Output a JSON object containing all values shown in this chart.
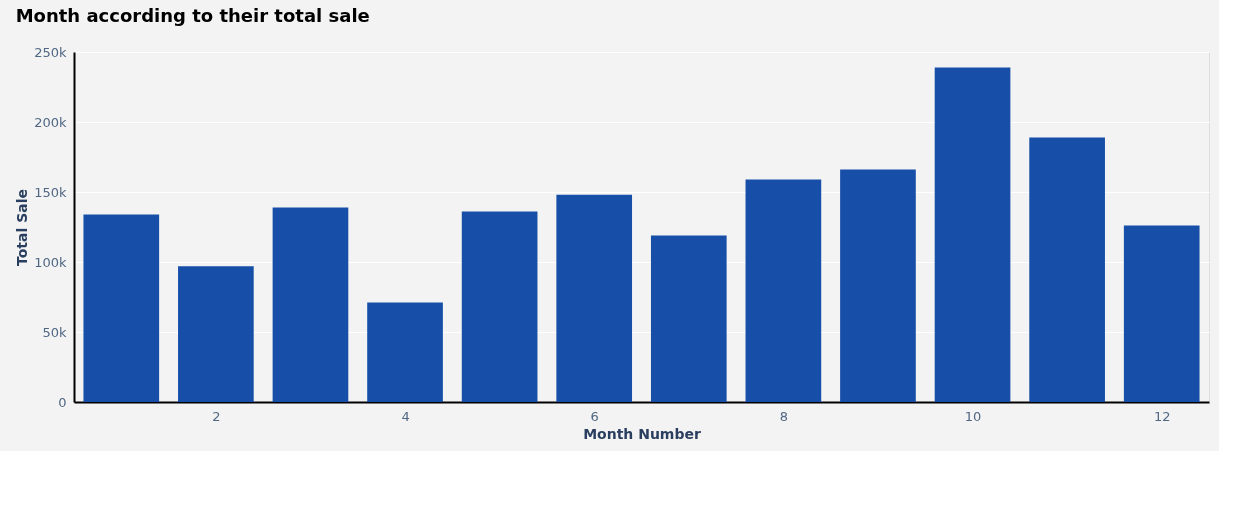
{
  "chart_data": {
    "type": "bar",
    "title": "Month according to their total sale",
    "xlabel": "Month Number",
    "ylabel": "Total Sale",
    "x": [
      1,
      2,
      3,
      4,
      5,
      6,
      7,
      8,
      9,
      10,
      11,
      12
    ],
    "values": [
      134000,
      97000,
      139000,
      71000,
      136000,
      148000,
      119000,
      159000,
      166000,
      239000,
      189000,
      126000
    ],
    "color": "#164ea8",
    "xlim": [
      0.5,
      12.5
    ],
    "xticks": [
      2,
      4,
      6,
      8,
      10,
      12
    ],
    "ylim": [
      0,
      250000
    ],
    "yticks": [
      {
        "value": 0,
        "label": "0"
      },
      {
        "value": 50000,
        "label": "50k"
      },
      {
        "value": 100000,
        "label": "100k"
      },
      {
        "value": 150000,
        "label": "150k"
      },
      {
        "value": 200000,
        "label": "200k"
      },
      {
        "value": 250000,
        "label": "250k"
      }
    ],
    "grid": "y"
  }
}
